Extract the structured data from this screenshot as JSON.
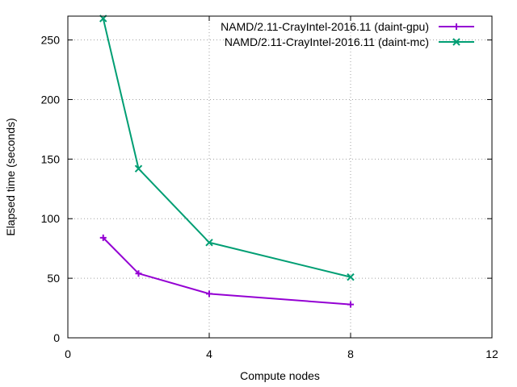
{
  "chart_data": {
    "type": "line",
    "title": "",
    "xlabel": "Compute nodes",
    "ylabel": "Elapsed time (seconds)",
    "xlim": [
      0,
      12
    ],
    "ylim": [
      0,
      270
    ],
    "xticks": [
      0,
      4,
      8,
      12
    ],
    "yticks": [
      0,
      50,
      100,
      150,
      200,
      250
    ],
    "grid": true,
    "legend_position": "top-right",
    "series": [
      {
        "name": "NAMD/2.11-CrayIntel-2016.11 (daint-gpu)",
        "color": "#9400d3",
        "marker": "plus",
        "x": [
          1,
          2,
          4,
          8
        ],
        "y": [
          84,
          54,
          37,
          28
        ]
      },
      {
        "name": "NAMD/2.11-CrayIntel-2016.11 (daint-mc)",
        "color": "#009e73",
        "marker": "cross",
        "x": [
          1,
          2,
          4,
          8
        ],
        "y": [
          268,
          142,
          80,
          51
        ]
      }
    ]
  }
}
